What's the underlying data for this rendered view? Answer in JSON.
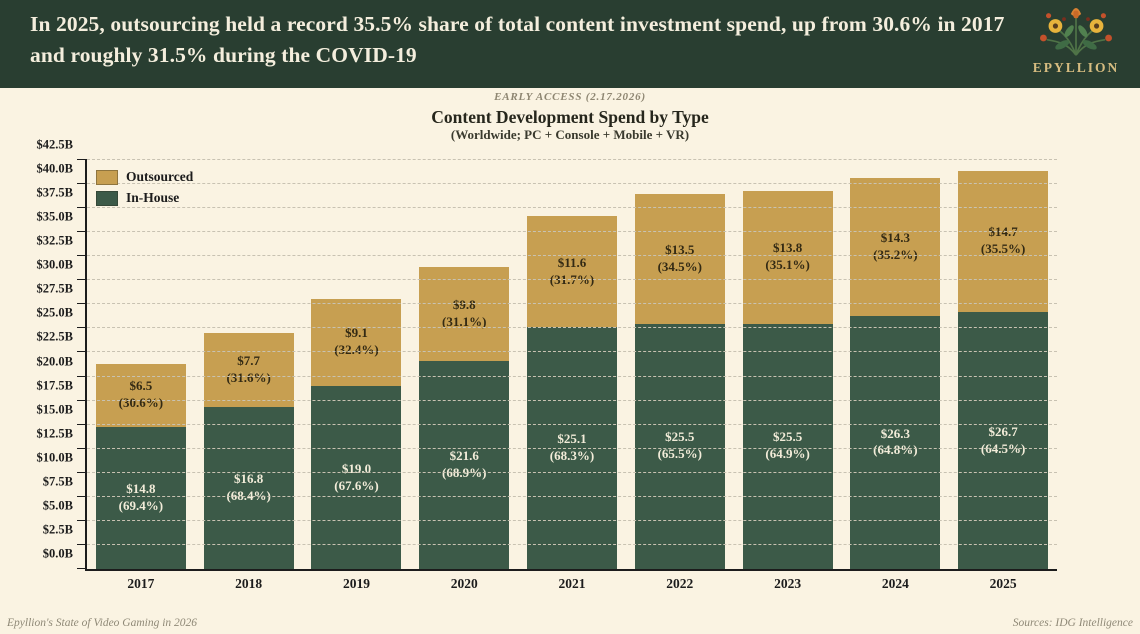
{
  "header": {
    "headline": "In 2025, outsourcing held a record 35.5% share of total content investment spend, up from 30.6% in 2017 and roughly 31.5% during the COVID-19",
    "brand": "EPYLLION"
  },
  "early_access": "EARLY ACCESS (2.17.2026)",
  "title": "Content Development Spend by Type",
  "subtitle": "(Worldwide; PC + Console + Mobile + VR)",
  "legend": [
    {
      "label": "Outsourced",
      "color": "#c79f51"
    },
    {
      "label": "In-House",
      "color": "#3c5a48"
    }
  ],
  "footer": {
    "left": "Epyllion's State of Video Gaming in 2026",
    "right": "Sources: IDG Intelligence"
  },
  "colors": {
    "header_bg": "#293e31",
    "header_text": "#f4eedd",
    "background": "#faf3e2",
    "outsourced": "#c79f51",
    "in_house": "#3c5a48",
    "brand_gold": "#d6bc80",
    "axis": "#1c1c1c",
    "gridline": "#c8c2b2"
  },
  "chart_data": {
    "type": "bar",
    "stacked": true,
    "title": "Content Development Spend by Type",
    "subtitle": "(Worldwide; PC + Console + Mobile + VR)",
    "xlabel": "",
    "ylabel": "",
    "categories": [
      "2017",
      "2018",
      "2019",
      "2020",
      "2021",
      "2022",
      "2023",
      "2024",
      "2025"
    ],
    "series": [
      {
        "name": "In-House",
        "color": "#3c5a48",
        "values": [
          14.8,
          16.8,
          19.0,
          21.6,
          25.1,
          25.5,
          25.5,
          26.3,
          26.7
        ],
        "pcts": [
          69.4,
          68.4,
          67.6,
          68.9,
          68.3,
          65.5,
          64.9,
          64.8,
          64.5
        ]
      },
      {
        "name": "Outsourced",
        "color": "#c79f51",
        "values": [
          6.5,
          7.7,
          9.1,
          9.8,
          11.6,
          13.5,
          13.8,
          14.3,
          14.7
        ],
        "pcts": [
          30.6,
          31.6,
          32.4,
          31.1,
          31.7,
          34.5,
          35.1,
          35.2,
          35.5
        ]
      }
    ],
    "totals": [
      21.3,
      24.5,
      28.1,
      31.4,
      36.7,
      39.0,
      39.3,
      40.6,
      41.4
    ],
    "ylim": [
      0,
      42.5
    ],
    "ytick_step": 2.5,
    "ytick_labels": [
      "$0.0B",
      "$2.5B",
      "$5.0B",
      "$7.5B",
      "$10.0B",
      "$12.5B",
      "$15.0B",
      "$17.5B",
      "$20.0B",
      "$22.5B",
      "$25.0B",
      "$27.5B",
      "$30.0B",
      "$32.5B",
      "$35.0B",
      "$37.5B",
      "$40.0B",
      "$42.5B"
    ],
    "grid": "horizontal-dashed",
    "legend_position": "top-left"
  }
}
